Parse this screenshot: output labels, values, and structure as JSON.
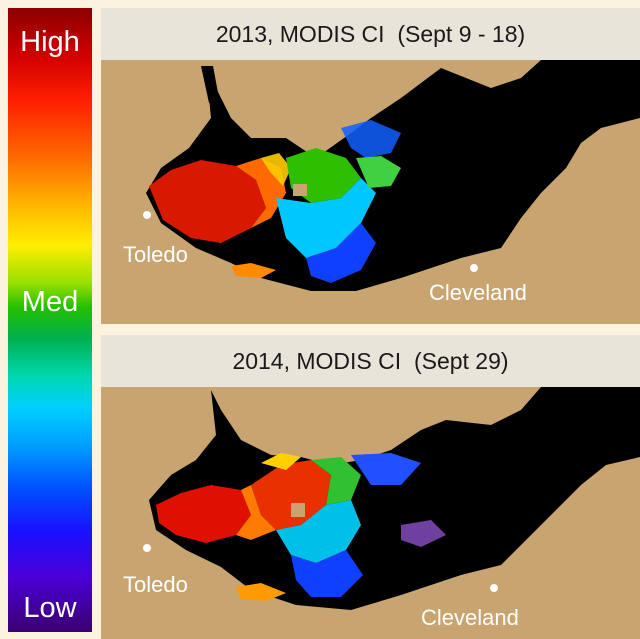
{
  "legend": {
    "high_label": "High",
    "med_label": "Med",
    "low_label": "Low"
  },
  "panels": [
    {
      "title": "2013, MODIS CI  (Sept 9 - 18)",
      "city_1": "Toledo",
      "city_2": "Cleveland"
    },
    {
      "title": "2014, MODIS CI  (Sept 29)",
      "city_1": "Toledo",
      "city_2": "Cleveland"
    }
  ],
  "colors": {
    "land": "#c8a470",
    "water": "#000000",
    "high": "#d40000",
    "med": "#22c000",
    "low": "#3a0070",
    "title_band": "#e9e4da",
    "background": "#fbf3df"
  }
}
